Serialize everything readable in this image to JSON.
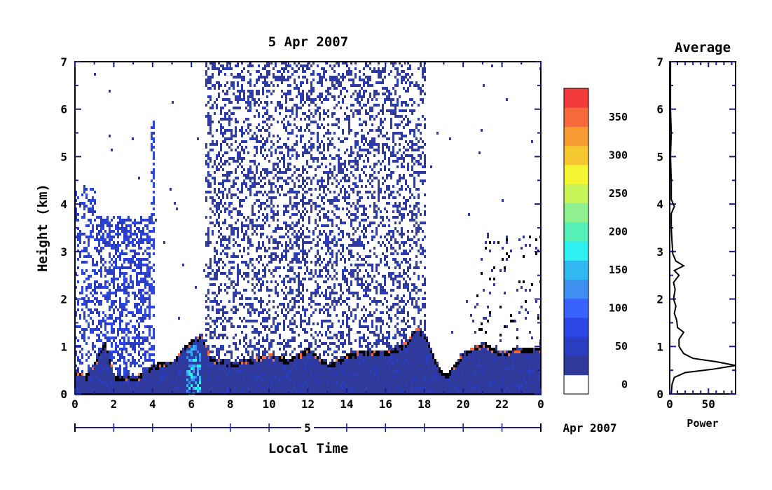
{
  "colors": {
    "axis": "#000000",
    "axis_accent": "#1a1a8c",
    "background": "#ffffff",
    "scale": [
      "#ffffff",
      "#2f3a9a",
      "#2a3cc0",
      "#2b45e6",
      "#3a62ff",
      "#3f8ff0",
      "#2fb9f0",
      "#2ff0f0",
      "#55f0b8",
      "#8ef08e",
      "#c8f55a",
      "#f5f532",
      "#f5c832",
      "#f59b32",
      "#f5693a",
      "#f23a3a"
    ]
  },
  "chart_data": [
    {
      "type": "heatmap",
      "title": "5 Apr 2007",
      "xlabel": "Local Time",
      "ylabel": "Height (km)",
      "x_ticks": [
        "0",
        "2",
        "4",
        "6",
        "8",
        "10",
        "12",
        "14",
        "16",
        "18",
        "20",
        "22",
        "0"
      ],
      "y_ticks": [
        "0",
        "1",
        "2",
        "3",
        "4",
        "5",
        "6",
        "7"
      ],
      "xlim": [
        0,
        24
      ],
      "ylim": [
        0,
        7
      ],
      "date_bar": {
        "day_label": "5",
        "month_label": "Apr 2007"
      },
      "colorbar": {
        "labels": [
          "0",
          "50",
          "100",
          "150",
          "200",
          "250",
          "300",
          "350"
        ],
        "min": 0,
        "max": 380,
        "step": 25
      },
      "features": {
        "boundary_layer_top_km": [
          [
            0,
            0.4
          ],
          [
            0.5,
            0.3
          ],
          [
            1,
            0.6
          ],
          [
            1.5,
            1.0
          ],
          [
            2,
            0.3
          ],
          [
            3,
            0.3
          ],
          [
            3.5,
            0.35
          ],
          [
            4,
            0.55
          ],
          [
            5,
            0.6
          ],
          [
            5.5,
            0.9
          ],
          [
            6,
            1.05
          ],
          [
            6.5,
            1.2
          ],
          [
            7,
            0.65
          ],
          [
            8,
            0.6
          ],
          [
            9,
            0.65
          ],
          [
            10,
            0.75
          ],
          [
            11,
            0.65
          ],
          [
            12,
            0.9
          ],
          [
            12.5,
            0.7
          ],
          [
            13,
            0.55
          ],
          [
            14,
            0.75
          ],
          [
            15,
            0.85
          ],
          [
            16,
            0.8
          ],
          [
            17,
            1.0
          ],
          [
            17.5,
            1.3
          ],
          [
            18,
            1.2
          ],
          [
            18.5,
            0.65
          ],
          [
            19,
            0.3
          ],
          [
            20,
            0.8
          ],
          [
            21,
            1.0
          ],
          [
            22,
            0.8
          ],
          [
            22.5,
            0.85
          ],
          [
            23,
            0.9
          ],
          [
            24,
            0.9
          ]
        ],
        "noise_region_hours": [
          6.7,
          18.0
        ]
      }
    },
    {
      "type": "line",
      "title": "Average",
      "xlabel": "Power",
      "ylabel": "",
      "x_ticks": [
        "0",
        "50"
      ],
      "y_ticks": [
        "0",
        "1",
        "2",
        "3",
        "4",
        "5",
        "6",
        "7"
      ],
      "xlim": [
        0,
        85
      ],
      "ylim": [
        0,
        7
      ],
      "series": [
        {
          "points": [
            [
              2,
              0.0
            ],
            [
              3,
              0.2
            ],
            [
              6,
              0.35
            ],
            [
              20,
              0.45
            ],
            [
              55,
              0.52
            ],
            [
              85,
              0.6
            ],
            [
              60,
              0.68
            ],
            [
              30,
              0.75
            ],
            [
              18,
              0.85
            ],
            [
              12,
              1.0
            ],
            [
              12,
              1.15
            ],
            [
              18,
              1.3
            ],
            [
              10,
              1.4
            ],
            [
              9,
              1.55
            ],
            [
              6,
              1.7
            ],
            [
              8,
              1.85
            ],
            [
              5,
              2.0
            ],
            [
              7,
              2.2
            ],
            [
              5,
              2.35
            ],
            [
              12,
              2.5
            ],
            [
              6,
              2.6
            ],
            [
              18,
              2.7
            ],
            [
              8,
              2.8
            ],
            [
              4,
              2.95
            ],
            [
              3,
              3.2
            ],
            [
              2,
              3.5
            ],
            [
              2,
              3.8
            ],
            [
              6,
              3.95
            ],
            [
              2,
              4.1
            ],
            [
              2,
              4.5
            ],
            [
              1,
              5.0
            ],
            [
              2,
              5.5
            ],
            [
              1,
              6.0
            ],
            [
              1,
              6.5
            ],
            [
              1,
              7.0
            ]
          ]
        }
      ]
    }
  ]
}
